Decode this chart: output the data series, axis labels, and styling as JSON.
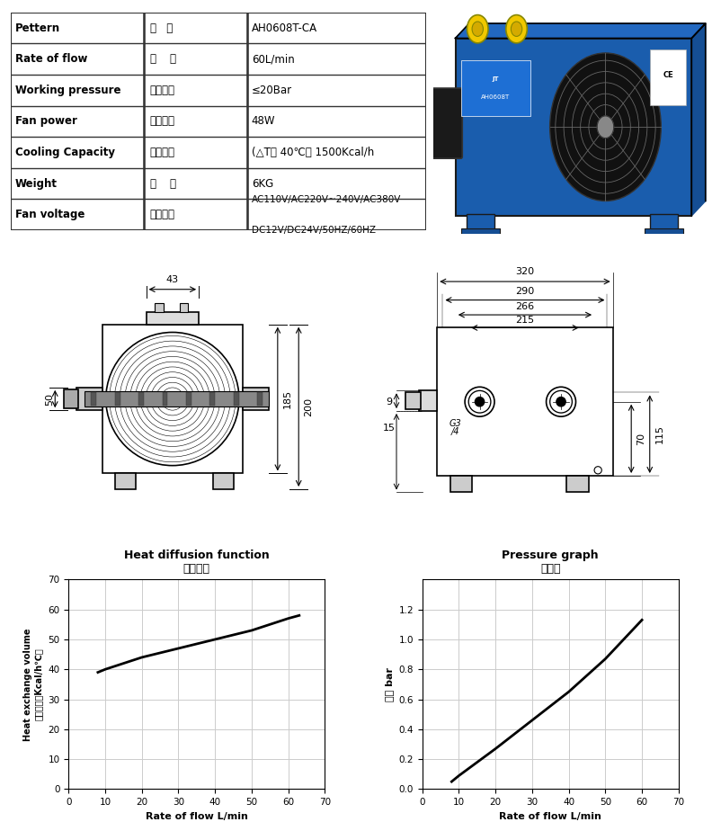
{
  "table_rows": [
    [
      "Pettern",
      "型   式",
      "AH0608T-CA"
    ],
    [
      "Rate of flow",
      "流    量",
      "60L/min"
    ],
    [
      "Working pressure",
      "工作压力",
      "≤20Bar"
    ],
    [
      "Fan power",
      "风扇功率",
      "48W"
    ],
    [
      "Cooling Capacity",
      "冷却能力",
      "(△T： 40℃） 1500Kcal/h"
    ],
    [
      "Weight",
      "重    量",
      "6KG"
    ],
    [
      "Fan voltage",
      "风扇电压",
      "AC110V/AC220V~240V/AC380V\nDC12V/DC24V/50HZ/60HZ"
    ]
  ],
  "heat_x": [
    8,
    10,
    20,
    30,
    40,
    50,
    60,
    63
  ],
  "heat_y": [
    39,
    40,
    44,
    47,
    50,
    53,
    57,
    58
  ],
  "pressure_x": [
    8,
    10,
    20,
    30,
    40,
    50,
    60
  ],
  "pressure_y": [
    0.05,
    0.09,
    0.27,
    0.46,
    0.65,
    0.87,
    1.13
  ],
  "bg_color": "#ffffff",
  "line_color": "#000000",
  "grid_color": "#cccccc",
  "table_border_color": "#333333"
}
